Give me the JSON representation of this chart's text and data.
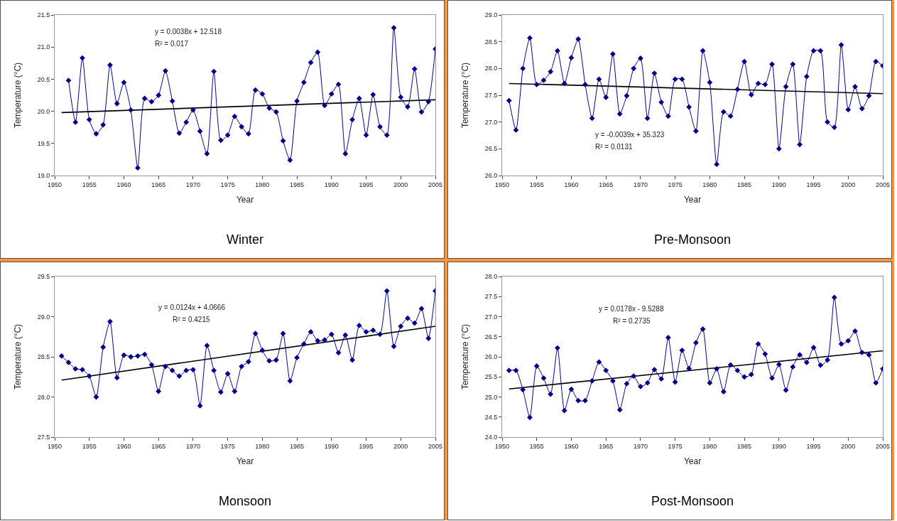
{
  "chart_data": [
    {
      "type": "line",
      "title": "Winter",
      "xlabel": "Year",
      "ylabel": "Temperature (°C)",
      "annotations": [
        "y = 0.0038x + 12.518",
        "R² = 0.017"
      ],
      "marker": "diamond",
      "grid": false,
      "xlim": [
        1950,
        2005
      ],
      "xticks": [
        1950,
        1955,
        1960,
        1965,
        1970,
        1975,
        1980,
        1985,
        1990,
        1995,
        2000,
        2005
      ],
      "ylim": [
        19,
        21.5
      ],
      "yticks": [
        {
          "value": 19,
          "label": "19.0"
        },
        19.5,
        {
          "value": 20,
          "label": "20.0"
        },
        20.5,
        {
          "value": 21,
          "label": "21.0"
        },
        21.5
      ],
      "series": [
        {
          "color": "#00008b",
          "x": [
            1952,
            1953,
            1954,
            1955,
            1956,
            1957,
            1958,
            1959,
            1960,
            1961,
            1962,
            1963,
            1964,
            1965,
            1966,
            1967,
            1968,
            1969,
            1970,
            1971,
            1972,
            1973,
            1974,
            1975,
            1976,
            1977,
            1978,
            1979,
            1980,
            1981,
            1982,
            1983,
            1984,
            1985,
            1986,
            1987,
            1988,
            1989,
            1990,
            1991,
            1992,
            1993,
            1994,
            1995,
            1996,
            1997,
            1998,
            1999,
            2000,
            2001,
            2002,
            2003,
            2004,
            2005
          ],
          "values": [
            20.48,
            19.83,
            20.83,
            19.87,
            19.65,
            19.79,
            20.72,
            20.12,
            20.45,
            20.02,
            19.12,
            20.2,
            20.15,
            20.25,
            20.63,
            20.16,
            19.66,
            19.83,
            20.02,
            19.69,
            19.34,
            20.62,
            19.55,
            19.63,
            19.92,
            19.76,
            19.65,
            20.33,
            20.27,
            20.05,
            19.99,
            19.54,
            19.24,
            20.16,
            20.45,
            20.76,
            20.92,
            20.09,
            20.27,
            20.42,
            19.34,
            19.87,
            20.2,
            19.63,
            20.26,
            19.76,
            19.63,
            21.3,
            20.22,
            20.07,
            20.66,
            19.99,
            20.15,
            20.97
          ]
        },
        {
          "type": "line",
          "marker": "none",
          "color": "#000000",
          "x": [
            1951,
            2005
          ],
          "values": [
            19.98,
            20.18
          ]
        }
      ]
    },
    {
      "type": "line",
      "title": "Pre-Monsoon",
      "xlabel": "Year",
      "ylabel": "Temperature (°C)",
      "annotations": [
        "y = -0.0039x + 35.323",
        "R² = 0.0131"
      ],
      "marker": "diamond",
      "grid": false,
      "xlim": [
        1950,
        2005
      ],
      "xticks": [
        1950,
        1955,
        1960,
        1965,
        1970,
        1975,
        1980,
        1985,
        1990,
        1995,
        2000,
        2005
      ],
      "ylim": [
        26,
        29
      ],
      "yticks": [
        {
          "value": 26,
          "label": "26.0"
        },
        26.5,
        {
          "value": 27,
          "label": "27.0"
        },
        27.5,
        {
          "value": 28,
          "label": "28.0"
        },
        28.5,
        {
          "value": 29,
          "label": "29.0"
        }
      ],
      "series": [
        {
          "color": "#00008b",
          "x": [
            1951,
            1952,
            1953,
            1954,
            1955,
            1956,
            1957,
            1958,
            1959,
            1960,
            1961,
            1962,
            1963,
            1964,
            1965,
            1966,
            1967,
            1968,
            1969,
            1970,
            1971,
            1972,
            1973,
            1974,
            1975,
            1976,
            1977,
            1978,
            1979,
            1980,
            1981,
            1982,
            1983,
            1984,
            1985,
            1986,
            1987,
            1988,
            1989,
            1990,
            1991,
            1992,
            1993,
            1994,
            1995,
            1996,
            1997,
            1998,
            1999,
            2000,
            2001,
            2002,
            2003,
            2004,
            2005
          ],
          "values": [
            27.4,
            26.85,
            28.0,
            28.57,
            27.7,
            27.78,
            27.94,
            28.33,
            27.72,
            28.2,
            28.55,
            27.7,
            27.07,
            27.8,
            27.46,
            28.27,
            27.15,
            27.49,
            28.0,
            28.19,
            27.07,
            27.91,
            27.37,
            27.11,
            27.8,
            27.8,
            27.28,
            26.83,
            28.33,
            27.74,
            26.21,
            27.19,
            27.11,
            27.61,
            28.13,
            27.51,
            27.72,
            27.7,
            28.08,
            26.5,
            27.66,
            28.08,
            26.58,
            27.85,
            28.33,
            28.33,
            27.0,
            26.9,
            28.44,
            27.23,
            27.66,
            27.25,
            27.49,
            28.13,
            28.05
          ]
        },
        {
          "type": "line",
          "marker": "none",
          "color": "#000000",
          "x": [
            1951,
            2005
          ],
          "values": [
            27.72,
            27.53
          ]
        }
      ]
    },
    {
      "type": "line",
      "title": "Monsoon",
      "xlabel": "Year",
      "ylabel": "Temperature (°C)",
      "annotations": [
        "y = 0.0124x + 4.0666",
        "R² = 0.4215"
      ],
      "marker": "diamond",
      "grid": false,
      "xlim": [
        1950,
        2005
      ],
      "xticks": [
        1950,
        1955,
        1960,
        1965,
        1970,
        1975,
        1980,
        1985,
        1990,
        1995,
        2000,
        2005
      ],
      "ylim": [
        27.5,
        29.5
      ],
      "yticks": [
        27.5,
        {
          "value": 28,
          "label": "28.0"
        },
        28.5,
        {
          "value": 29,
          "label": "29.0"
        },
        29.5
      ],
      "series": [
        {
          "color": "#00008b",
          "x": [
            1951,
            1952,
            1953,
            1954,
            1955,
            1956,
            1957,
            1958,
            1959,
            1960,
            1961,
            1962,
            1963,
            1964,
            1965,
            1966,
            1967,
            1968,
            1969,
            1970,
            1971,
            1972,
            1973,
            1974,
            1975,
            1976,
            1977,
            1978,
            1979,
            1980,
            1981,
            1982,
            1983,
            1984,
            1985,
            1986,
            1987,
            1988,
            1989,
            1990,
            1991,
            1992,
            1993,
            1994,
            1995,
            1996,
            1997,
            1998,
            1999,
            2000,
            2001,
            2002,
            2003,
            2004,
            2005
          ],
          "values": [
            28.51,
            28.43,
            28.35,
            28.34,
            28.26,
            28.0,
            28.62,
            28.94,
            28.24,
            28.52,
            28.5,
            28.51,
            28.53,
            28.4,
            28.07,
            28.38,
            28.33,
            28.26,
            28.33,
            28.34,
            27.89,
            28.64,
            28.33,
            28.06,
            28.29,
            28.07,
            28.38,
            28.44,
            28.79,
            28.58,
            28.45,
            28.46,
            28.79,
            28.2,
            28.49,
            28.66,
            28.81,
            28.7,
            28.71,
            28.78,
            28.55,
            28.77,
            28.46,
            28.89,
            28.81,
            28.83,
            28.78,
            29.32,
            28.63,
            28.88,
            28.98,
            28.92,
            29.1,
            28.73,
            29.32
          ]
        },
        {
          "type": "line",
          "marker": "none",
          "color": "#000000",
          "x": [
            1951,
            2005
          ],
          "values": [
            28.21,
            28.88
          ]
        }
      ]
    },
    {
      "type": "line",
      "title": "Post-Monsoon",
      "xlabel": "Year",
      "ylabel": "Temperature (°C)",
      "annotations": [
        "y = 0.0178x - 9.5288",
        "R² = 0.2735"
      ],
      "marker": "diamond",
      "grid": false,
      "xlim": [
        1950,
        2005
      ],
      "xticks": [
        1950,
        1955,
        1960,
        1965,
        1970,
        1975,
        1980,
        1985,
        1990,
        1995,
        2000,
        2005
      ],
      "ylim": [
        24,
        28
      ],
      "yticks": [
        {
          "value": 24,
          "label": "24.0"
        },
        24.5,
        {
          "value": 25,
          "label": "25.0"
        },
        25.5,
        {
          "value": 26,
          "label": "26.0"
        },
        26.5,
        {
          "value": 27,
          "label": "27.0"
        },
        27.5,
        {
          "value": 28,
          "label": "28.0"
        }
      ],
      "series": [
        {
          "color": "#00008b",
          "x": [
            1951,
            1952,
            1953,
            1954,
            1955,
            1956,
            1957,
            1958,
            1959,
            1960,
            1961,
            1962,
            1963,
            1964,
            1965,
            1966,
            1967,
            1968,
            1969,
            1970,
            1971,
            1972,
            1973,
            1974,
            1975,
            1976,
            1977,
            1978,
            1979,
            1980,
            1981,
            1982,
            1983,
            1984,
            1985,
            1986,
            1987,
            1988,
            1989,
            1990,
            1991,
            1992,
            1993,
            1994,
            1995,
            1996,
            1997,
            1998,
            1999,
            2000,
            2001,
            2002,
            2003,
            2004,
            2005
          ],
          "values": [
            25.66,
            25.66,
            25.18,
            24.49,
            25.77,
            25.47,
            25.07,
            26.22,
            24.66,
            25.19,
            24.91,
            24.91,
            25.4,
            25.87,
            25.66,
            25.4,
            24.68,
            25.33,
            25.52,
            25.26,
            25.35,
            25.68,
            25.45,
            26.48,
            25.37,
            26.16,
            25.71,
            26.35,
            26.69,
            25.35,
            25.7,
            25.13,
            25.8,
            25.66,
            25.5,
            25.56,
            26.32,
            26.07,
            25.47,
            25.81,
            25.17,
            25.75,
            26.05,
            25.86,
            26.23,
            25.79,
            25.92,
            27.48,
            26.32,
            26.4,
            26.64,
            26.11,
            26.05,
            25.35,
            25.7
          ]
        },
        {
          "type": "line",
          "marker": "none",
          "color": "#000000",
          "x": [
            1951,
            2005
          ],
          "values": [
            25.2,
            26.15
          ]
        }
      ]
    }
  ]
}
